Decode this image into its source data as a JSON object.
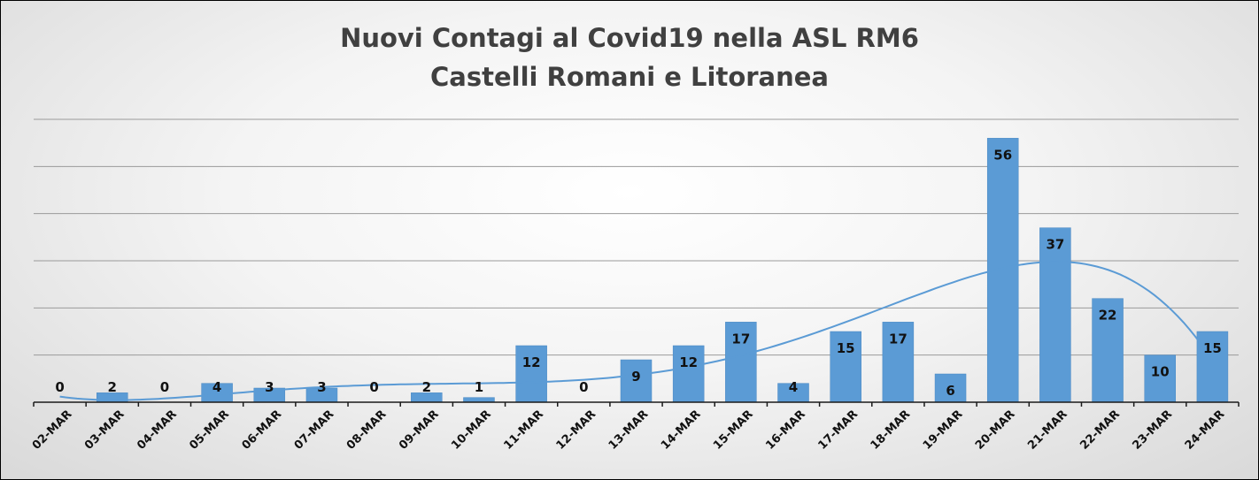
{
  "chart_data": {
    "type": "bar",
    "title": "Nuovi Contagi al Covid19 nella ASL RM6",
    "subtitle": "Castelli Romani e Litoranea",
    "categories": [
      "02-MAR",
      "03-MAR",
      "04-MAR",
      "05-MAR",
      "06-MAR",
      "07-MAR",
      "08-MAR",
      "09-MAR",
      "10-MAR",
      "11-MAR",
      "12-MAR",
      "13-MAR",
      "14-MAR",
      "15-MAR",
      "16-MAR",
      "17-MAR",
      "18-MAR",
      "19-MAR",
      "20-MAR",
      "21-MAR",
      "22-MAR",
      "23-MAR",
      "24-MAR"
    ],
    "values": [
      0,
      2,
      0,
      4,
      3,
      3,
      0,
      2,
      1,
      12,
      0,
      9,
      12,
      17,
      4,
      15,
      17,
      6,
      56,
      37,
      22,
      10,
      15
    ],
    "ylim": [
      0,
      60
    ],
    "grid": true,
    "trendline": "polynomial",
    "bar_color": "#5b9bd5"
  }
}
